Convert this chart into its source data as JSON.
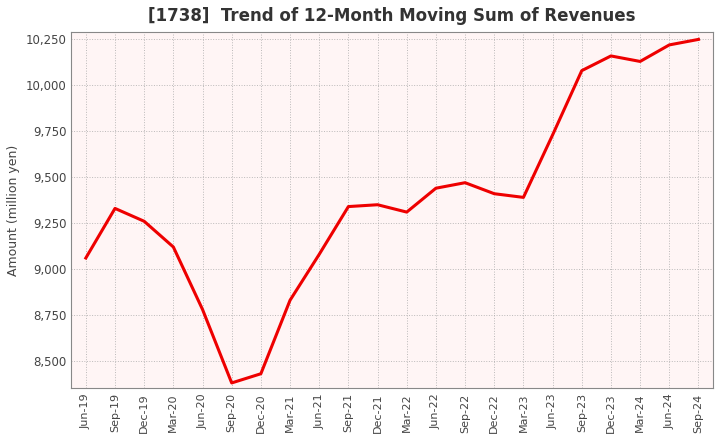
{
  "title": "[1738]  Trend of 12-Month Moving Sum of Revenues",
  "ylabel": "Amount (million yen)",
  "background_color": "#ffffff",
  "plot_bg_color": "#fff5f5",
  "line_color": "#ee0000",
  "line_width": 2.2,
  "ylim": [
    8350,
    10290
  ],
  "yticks": [
    8500,
    8750,
    9000,
    9250,
    9500,
    9750,
    10000,
    10250
  ],
  "x_labels": [
    "Jun-19",
    "Sep-19",
    "Dec-19",
    "Mar-20",
    "Jun-20",
    "Sep-20",
    "Dec-20",
    "Mar-21",
    "Jun-21",
    "Sep-21",
    "Dec-21",
    "Mar-22",
    "Jun-22",
    "Sep-22",
    "Dec-22",
    "Mar-23",
    "Jun-23",
    "Sep-23",
    "Dec-23",
    "Mar-24",
    "Jun-24",
    "Sep-24"
  ],
  "values": [
    9060,
    9330,
    9260,
    9120,
    8780,
    8380,
    8430,
    8830,
    9080,
    9340,
    9350,
    9310,
    9440,
    9470,
    9410,
    9390,
    9730,
    10080,
    10160,
    10130,
    10220,
    10250
  ],
  "title_color": "#333333",
  "title_fontsize": 12,
  "grid_color": "#aaaaaa",
  "spine_color": "#888888"
}
